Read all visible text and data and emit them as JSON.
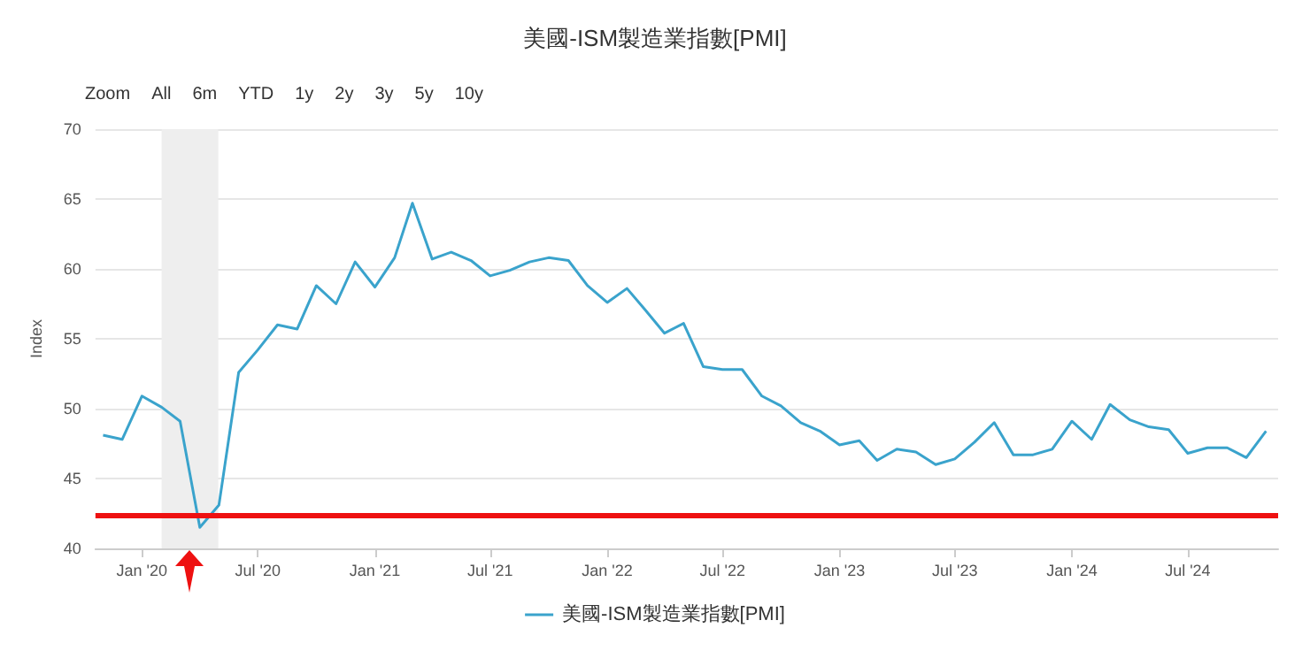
{
  "chart_data": {
    "type": "line",
    "title": "美國-ISM製造業指數[PMI]",
    "ylabel": "Index",
    "annotations": [
      "Zoom",
      "All",
      "6m",
      "YTD",
      "1y",
      "2y",
      "3y",
      "5y",
      "10y"
    ],
    "x": [
      "2019-11",
      "2019-12",
      "2020-01",
      "2020-02",
      "2020-03",
      "2020-04",
      "2020-05",
      "2020-06",
      "2020-07",
      "2020-08",
      "2020-09",
      "2020-10",
      "2020-11",
      "2020-12",
      "2021-01",
      "2021-02",
      "2021-03",
      "2021-04",
      "2021-05",
      "2021-06",
      "2021-07",
      "2021-08",
      "2021-09",
      "2021-10",
      "2021-11",
      "2021-12",
      "2022-01",
      "2022-02",
      "2022-03",
      "2022-04",
      "2022-05",
      "2022-06",
      "2022-07",
      "2022-08",
      "2022-09",
      "2022-10",
      "2022-11",
      "2022-12",
      "2023-01",
      "2023-02",
      "2023-03",
      "2023-04",
      "2023-05",
      "2023-06",
      "2023-07",
      "2023-08",
      "2023-09",
      "2023-10",
      "2023-11",
      "2023-12",
      "2024-01",
      "2024-02",
      "2024-03",
      "2024-04",
      "2024-05",
      "2024-06",
      "2024-07",
      "2024-08",
      "2024-09",
      "2024-10",
      "2024-11"
    ],
    "series": [
      {
        "name": "美國-ISM製造業指數[PMI]",
        "color": "#3aa3cc",
        "values": [
          48.1,
          47.8,
          50.9,
          50.1,
          49.1,
          41.5,
          43.1,
          52.6,
          54.2,
          56.0,
          55.7,
          58.8,
          57.5,
          60.5,
          58.7,
          60.8,
          64.7,
          60.7,
          61.2,
          60.6,
          59.5,
          59.9,
          60.5,
          60.8,
          60.6,
          58.8,
          57.6,
          58.6,
          57.1,
          55.4,
          56.1,
          53.0,
          52.8,
          52.8,
          50.9,
          50.2,
          49.0,
          48.4,
          47.4,
          47.7,
          46.3,
          47.1,
          46.9,
          46.0,
          46.4,
          47.6,
          49.0,
          46.7,
          46.7,
          47.1,
          49.1,
          47.8,
          50.3,
          49.2,
          48.7,
          48.5,
          46.8,
          47.2,
          47.2,
          46.5,
          48.4
        ]
      }
    ],
    "xlim": [
      "2019-10-20",
      "2024-11-20"
    ],
    "xticks": [
      {
        "value": "2020-01",
        "label": "Jan '20"
      },
      {
        "value": "2020-07",
        "label": "Jul '20"
      },
      {
        "value": "2021-01",
        "label": "Jan '21"
      },
      {
        "value": "2021-07",
        "label": "Jul '21"
      },
      {
        "value": "2022-01",
        "label": "Jan '22"
      },
      {
        "value": "2022-07",
        "label": "Jul '22"
      },
      {
        "value": "2023-01",
        "label": "Jan '23"
      },
      {
        "value": "2023-07",
        "label": "Jul '23"
      },
      {
        "value": "2024-01",
        "label": "Jan '24"
      },
      {
        "value": "2024-07",
        "label": "Jul '24"
      }
    ],
    "ylim": [
      40,
      70
    ],
    "yticks": [
      40,
      45,
      50,
      55,
      60,
      65,
      70
    ],
    "ref_lines": [
      {
        "axis": "y",
        "value": 42.4,
        "color": "#ee1111"
      }
    ],
    "bands": [
      {
        "axis": "x",
        "from": "2020-02-01",
        "to": "2020-04-30",
        "color": "#eeeeee"
      }
    ],
    "grid": "y",
    "legend": "bottom",
    "marker": "none",
    "line_style": "solid"
  }
}
